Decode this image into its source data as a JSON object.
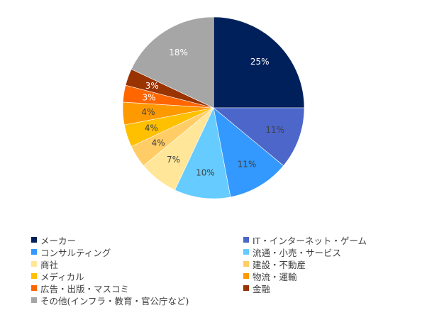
{
  "chart_data": {
    "type": "pie",
    "start_angle_deg": 0,
    "direction": "clockwise",
    "legend_position": "bottom",
    "slices": [
      {
        "label": "メーカー",
        "value": 25,
        "value_label": "25%",
        "color": "#00205b",
        "label_color": "#ffffff"
      },
      {
        "label": "IT・インターネット・ゲーム",
        "value": 11,
        "value_label": "11%",
        "color": "#4c66c9",
        "label_color": "#404040"
      },
      {
        "label": "コンサルティング",
        "value": 11,
        "value_label": "11%",
        "color": "#3399ff",
        "label_color": "#404040"
      },
      {
        "label": "流通・小売・サービス",
        "value": 10,
        "value_label": "10%",
        "color": "#66ccff",
        "label_color": "#404040"
      },
      {
        "label": "商社",
        "value": 7,
        "value_label": "7%",
        "color": "#ffe699",
        "label_color": "#404040"
      },
      {
        "label": "建設・不動産",
        "value": 4,
        "value_label": "4%",
        "color": "#ffcc66",
        "label_color": "#404040"
      },
      {
        "label": "メディカル",
        "value": 4,
        "value_label": "4%",
        "color": "#ffc000",
        "label_color": "#404040"
      },
      {
        "label": "物流・運輸",
        "value": 4,
        "value_label": "4%",
        "color": "#ff9900",
        "label_color": "#404040"
      },
      {
        "label": "広告・出版・マスコミ",
        "value": 3,
        "value_label": "3%",
        "color": "#ff6600",
        "label_color": "#ffffff"
      },
      {
        "label": "金融",
        "value": 3,
        "value_label": "3%",
        "color": "#993300",
        "label_color": "#ffffff"
      },
      {
        "label": "その他(インフラ・教育・官公庁など)",
        "value": 18,
        "value_label": "18%",
        "color": "#a6a6a6",
        "label_color": "#ffffff"
      }
    ]
  }
}
